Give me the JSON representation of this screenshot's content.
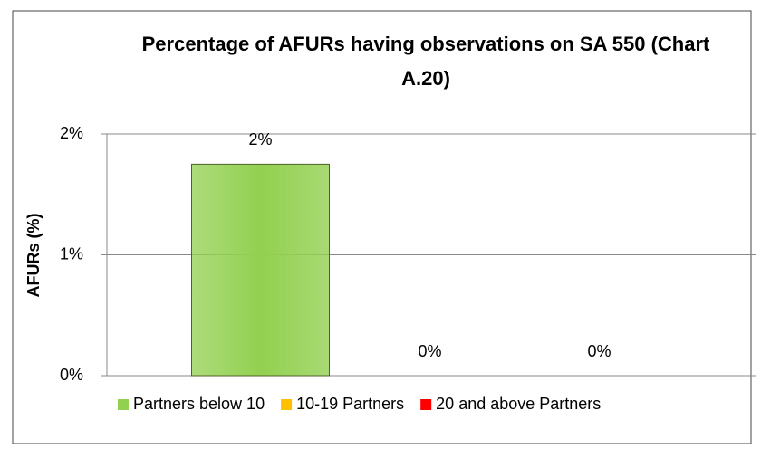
{
  "chart_data": {
    "type": "bar",
    "title": "Percentage of AFURs having observations on SA 550 (Chart A.20)",
    "y_label": "AFURs (%)",
    "categories": [
      null
    ],
    "series": [
      {
        "name": "Partners below 10",
        "color": "#92d050",
        "values": [
          1.75
        ],
        "value_labels": [
          "2%"
        ]
      },
      {
        "name": "10-19 Partners",
        "color": "#ffc000",
        "values": [
          0
        ],
        "value_labels": [
          "0%"
        ]
      },
      {
        "name": "20 and above Partners",
        "color": "#ff0000",
        "values": [
          0
        ],
        "value_labels": [
          "0%"
        ]
      }
    ],
    "ylim": [
      0,
      2
    ],
    "yticks": [
      {
        "value": 0,
        "label": "0%"
      },
      {
        "value": 1,
        "label": "1%"
      },
      {
        "value": 2,
        "label": "2%"
      }
    ],
    "grid": true,
    "legend": "bottom"
  }
}
